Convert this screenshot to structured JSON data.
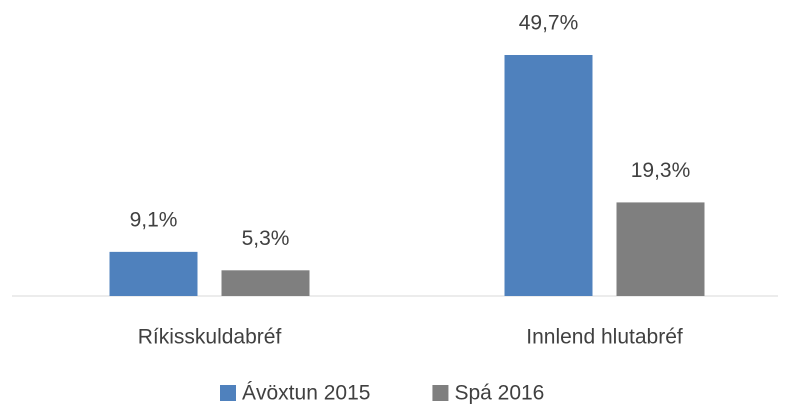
{
  "chart_data": {
    "type": "bar",
    "categories": [
      "Ríkisskuldabréf",
      "Innlend hlutabréf"
    ],
    "series": [
      {
        "name": "Ávöxtun 2015",
        "color": "#4f81bd",
        "values": [
          9.1,
          49.7
        ],
        "value_labels": [
          "9,1%",
          "49,7%"
        ]
      },
      {
        "name": "Spá 2016",
        "color": "#7f7f7f",
        "values": [
          5.3,
          19.3
        ],
        "value_labels": [
          "5,3%",
          "19,3%"
        ]
      }
    ],
    "legend": "bottom"
  }
}
